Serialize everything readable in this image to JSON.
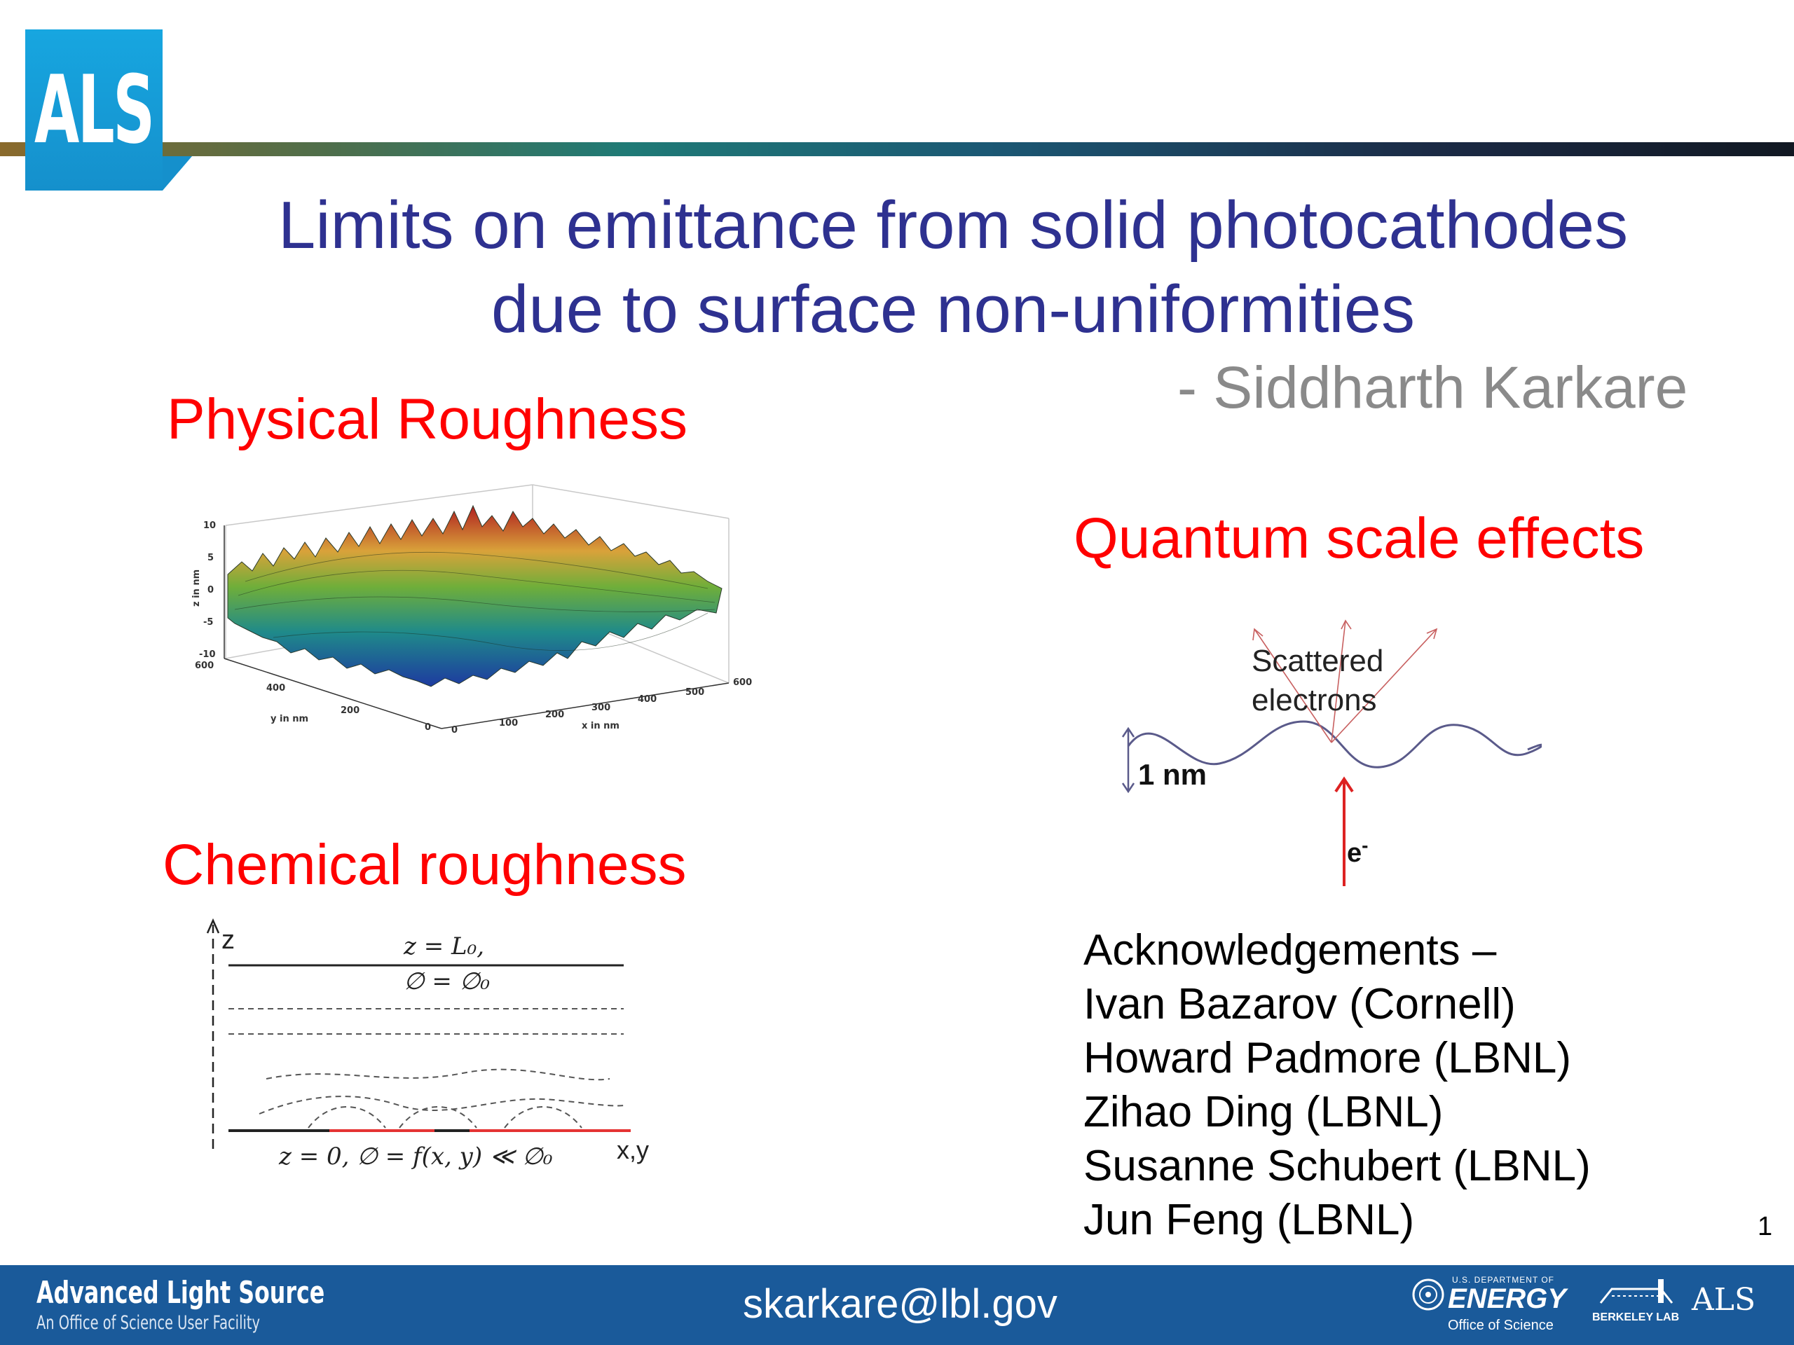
{
  "header": {
    "logo_text": "ALS"
  },
  "title": {
    "line1": "Limits on emittance from solid photocathodes",
    "line2": "due to surface non-uniformities"
  },
  "author": "- Siddharth Karkare",
  "sections": {
    "physical": "Physical Roughness",
    "quantum": "Quantum scale effects",
    "chemical": "Chemical roughness"
  },
  "surface_plot": {
    "z_axis_label": "z in nm",
    "y_axis_label": "y in nm",
    "x_axis_label": "x in nm",
    "z_ticks": [
      "10",
      "5",
      "0",
      "-5",
      "-10"
    ],
    "y_ticks": [
      "600",
      "400",
      "200",
      "0"
    ],
    "x_ticks": [
      "0",
      "100",
      "200",
      "300",
      "400",
      "500",
      "600"
    ]
  },
  "quantum_diagram": {
    "scattered_line1": "Scattered",
    "scattered_line2": "electrons",
    "scale_label": "1 nm",
    "electron_label": "e",
    "electron_sup": "-"
  },
  "chem_diagram": {
    "z_label": "z",
    "top_eq_line1": "z = L₀,",
    "top_eq_line2": "∅ = ∅₀",
    "bottom_eq": "z = 0, ∅ = f(x, y) ≪ ∅₀",
    "xy_label": "x,y"
  },
  "acknowledgements": [
    "Acknowledgements –",
    "Ivan Bazarov (Cornell)",
    "Howard Padmore (LBNL)",
    "Zihao Ding (LBNL)",
    "Susanne Schubert (LBNL)",
    "Jun Feng (LBNL)"
  ],
  "page_number": "1",
  "footer": {
    "org_name": "Advanced Light Source",
    "org_sub": "An Office of Science User Facility",
    "email": "skarkare@lbl.gov",
    "doe_small": "U.S. DEPARTMENT OF",
    "doe_main": "ENERGY",
    "doe_office": "Office of Science",
    "berkeley": "BERKELEY LAB",
    "als_small": "ALS"
  },
  "colors": {
    "title_blue": "#2e3190",
    "section_red": "#ff0000",
    "author_gray": "#8a8a8a",
    "footer_blue": "#1a5a9a",
    "logo_blue": "#17a6e0"
  }
}
